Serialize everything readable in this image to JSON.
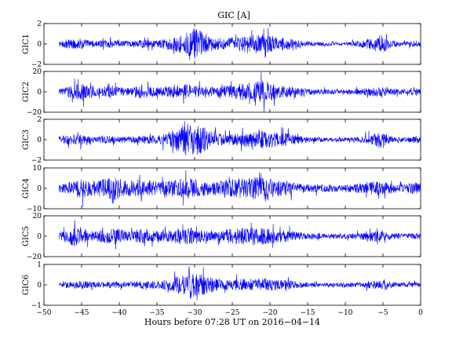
{
  "chart_data": {
    "type": "line",
    "title": "GIC [A]",
    "xlabel": "Hours before  07:28 UT on 2016−04−14",
    "xlim": [
      -50,
      0
    ],
    "xticks": [
      -50,
      -45,
      -40,
      -35,
      -30,
      -25,
      -20,
      -15,
      -10,
      -5,
      0
    ],
    "xtick_labels": [
      "−50",
      "−45",
      "−40",
      "−35",
      "−30",
      "−25",
      "−20",
      "−15",
      "−10",
      "−5",
      "0"
    ],
    "grid": false,
    "legend": "none",
    "series_color": "#0000ff",
    "series": [
      {
        "name": "GIC1",
        "ylim": [
          -2,
          2
        ],
        "ytick_labels": [
          "2",
          "0",
          "−2"
        ],
        "x": [
          -48,
          -47,
          -46,
          -45,
          -44,
          -43,
          -42,
          -41,
          -40,
          -39,
          -38,
          -37,
          -36,
          -35,
          -34,
          -33,
          -32,
          -31,
          -30,
          -29,
          -28,
          -27,
          -26,
          -25,
          -24,
          -23,
          -22,
          -21,
          -20,
          -19,
          -18,
          -17,
          -16,
          -15,
          -14,
          -13,
          -12,
          -11,
          -10,
          -9,
          -8,
          -7,
          -6,
          -5,
          -4,
          -3,
          -2,
          -1,
          0
        ],
        "amplitude": [
          0.25,
          0.45,
          0.5,
          0.55,
          0.35,
          0.3,
          0.35,
          0.4,
          0.3,
          0.3,
          0.35,
          0.45,
          0.35,
          0.35,
          0.5,
          0.65,
          0.9,
          1.2,
          1.6,
          1.2,
          0.8,
          0.6,
          0.55,
          0.65,
          0.75,
          0.8,
          0.95,
          1.0,
          0.85,
          0.7,
          0.7,
          0.45,
          0.35,
          0.25,
          0.2,
          0.2,
          0.18,
          0.18,
          0.2,
          0.25,
          0.3,
          0.55,
          0.8,
          0.9,
          0.35,
          0.25,
          0.2,
          0.35,
          0.3
        ]
      },
      {
        "name": "GIC2",
        "ylim": [
          -20,
          20
        ],
        "ytick_labels": [
          "20",
          "0",
          "−20"
        ],
        "x": [
          -48,
          -47,
          -46,
          -45,
          -44,
          -43,
          -42,
          -41,
          -40,
          -39,
          -38,
          -37,
          -36,
          -35,
          -34,
          -33,
          -32,
          -31,
          -30,
          -29,
          -28,
          -27,
          -26,
          -25,
          -24,
          -23,
          -22,
          -21,
          -20,
          -19,
          -18,
          -17,
          -16,
          -15,
          -14,
          -13,
          -12,
          -11,
          -10,
          -9,
          -8,
          -7,
          -6,
          -5,
          -4,
          -3,
          -2,
          -1,
          0
        ],
        "amplitude": [
          3,
          5,
          7,
          9,
          6,
          4,
          5,
          7,
          5,
          4,
          5,
          7,
          5,
          4,
          5,
          6,
          7,
          8,
          7,
          6,
          5,
          5,
          6,
          7,
          8,
          9,
          10,
          11,
          9,
          7,
          6,
          5,
          4,
          3,
          3,
          2.5,
          2.5,
          2.5,
          2.5,
          3,
          3,
          4,
          5,
          6,
          3,
          3,
          2.5,
          3,
          3
        ]
      },
      {
        "name": "GIC3",
        "ylim": [
          -2,
          2
        ],
        "ytick_labels": [
          "2",
          "0",
          "−2"
        ],
        "x": [
          -48,
          -47,
          -46,
          -45,
          -44,
          -43,
          -42,
          -41,
          -40,
          -39,
          -38,
          -37,
          -36,
          -35,
          -34,
          -33,
          -32,
          -31,
          -30,
          -29,
          -28,
          -27,
          -26,
          -25,
          -24,
          -23,
          -22,
          -21,
          -20,
          -19,
          -18,
          -17,
          -16,
          -15,
          -14,
          -13,
          -12,
          -11,
          -10,
          -9,
          -8,
          -7,
          -6,
          -5,
          -4,
          -3,
          -2,
          -1,
          0
        ],
        "amplitude": [
          0.35,
          0.5,
          0.55,
          0.5,
          0.35,
          0.3,
          0.35,
          0.4,
          0.3,
          0.3,
          0.35,
          0.45,
          0.4,
          0.4,
          0.6,
          0.9,
          1.3,
          1.6,
          1.6,
          1.3,
          0.9,
          0.6,
          0.5,
          0.55,
          0.65,
          0.7,
          0.8,
          0.9,
          0.8,
          0.7,
          0.7,
          0.55,
          0.4,
          0.3,
          0.25,
          0.22,
          0.2,
          0.2,
          0.2,
          0.25,
          0.3,
          0.5,
          0.7,
          0.9,
          0.35,
          0.25,
          0.22,
          0.35,
          0.3
        ]
      },
      {
        "name": "GIC4",
        "ylim": [
          -10,
          10
        ],
        "ytick_labels": [
          "10",
          "0",
          "−10"
        ],
        "x": [
          -48,
          -47,
          -46,
          -45,
          -44,
          -43,
          -42,
          -41,
          -40,
          -39,
          -38,
          -37,
          -36,
          -35,
          -34,
          -33,
          -32,
          -31,
          -30,
          -29,
          -28,
          -27,
          -26,
          -25,
          -24,
          -23,
          -22,
          -21,
          -20,
          -19,
          -18,
          -17,
          -16,
          -15,
          -14,
          -13,
          -12,
          -11,
          -10,
          -9,
          -8,
          -7,
          -6,
          -5,
          -4,
          -3,
          -2,
          -1,
          0
        ],
        "amplitude": [
          2,
          3,
          4,
          5,
          4,
          3.5,
          5,
          8,
          5,
          4,
          4,
          5,
          4,
          3,
          3.5,
          4,
          5,
          5.5,
          5,
          4,
          3.5,
          3.5,
          4,
          4.5,
          5,
          5,
          5.5,
          6,
          5,
          4,
          4,
          3,
          2.5,
          2,
          2,
          1.8,
          1.8,
          1.8,
          2,
          2,
          2.5,
          3,
          3.5,
          3.5,
          2.5,
          2,
          2,
          3,
          2.5
        ]
      },
      {
        "name": "GIC5",
        "ylim": [
          -20,
          20
        ],
        "ytick_labels": [
          "20",
          "0",
          "−20"
        ],
        "x": [
          -48,
          -47,
          -46,
          -45,
          -44,
          -43,
          -42,
          -41,
          -40,
          -39,
          -38,
          -37,
          -36,
          -35,
          -34,
          -33,
          -32,
          -31,
          -30,
          -29,
          -28,
          -27,
          -26,
          -25,
          -24,
          -23,
          -22,
          -21,
          -20,
          -19,
          -18,
          -17,
          -16,
          -15,
          -14,
          -13,
          -12,
          -11,
          -10,
          -9,
          -8,
          -7,
          -6,
          -5,
          -4,
          -3,
          -2,
          -1,
          0
        ],
        "amplitude": [
          4,
          7,
          10,
          9,
          6,
          5,
          7,
          10,
          7,
          5,
          6,
          8,
          6,
          5,
          5,
          6,
          8,
          9,
          8,
          6,
          5,
          5,
          7,
          8,
          8,
          8,
          9,
          9,
          8,
          6,
          6,
          5,
          4,
          3,
          3,
          2.5,
          2.5,
          2.5,
          2.5,
          3,
          3,
          4,
          6,
          6,
          3,
          3,
          2.5,
          3,
          3
        ]
      },
      {
        "name": "GIC6",
        "ylim": [
          -1,
          1
        ],
        "ytick_labels": [
          "1",
          "0",
          "−1"
        ],
        "x": [
          -48,
          -47,
          -46,
          -45,
          -44,
          -43,
          -42,
          -41,
          -40,
          -39,
          -38,
          -37,
          -36,
          -35,
          -34,
          -33,
          -32,
          -31,
          -30,
          -29,
          -28,
          -27,
          -26,
          -25,
          -24,
          -23,
          -22,
          -21,
          -20,
          -19,
          -18,
          -17,
          -16,
          -15,
          -14,
          -13,
          -12,
          -11,
          -10,
          -9,
          -8,
          -7,
          -6,
          -5,
          -4,
          -3,
          -2,
          -1,
          0
        ],
        "amplitude": [
          0.1,
          0.15,
          0.18,
          0.2,
          0.15,
          0.13,
          0.15,
          0.18,
          0.15,
          0.13,
          0.15,
          0.2,
          0.18,
          0.18,
          0.25,
          0.35,
          0.45,
          0.55,
          0.65,
          0.5,
          0.4,
          0.3,
          0.25,
          0.25,
          0.3,
          0.3,
          0.32,
          0.35,
          0.3,
          0.25,
          0.25,
          0.2,
          0.15,
          0.12,
          0.1,
          0.1,
          0.09,
          0.09,
          0.1,
          0.1,
          0.12,
          0.18,
          0.2,
          0.22,
          0.15,
          0.12,
          0.1,
          0.12,
          0.12
        ]
      }
    ]
  }
}
